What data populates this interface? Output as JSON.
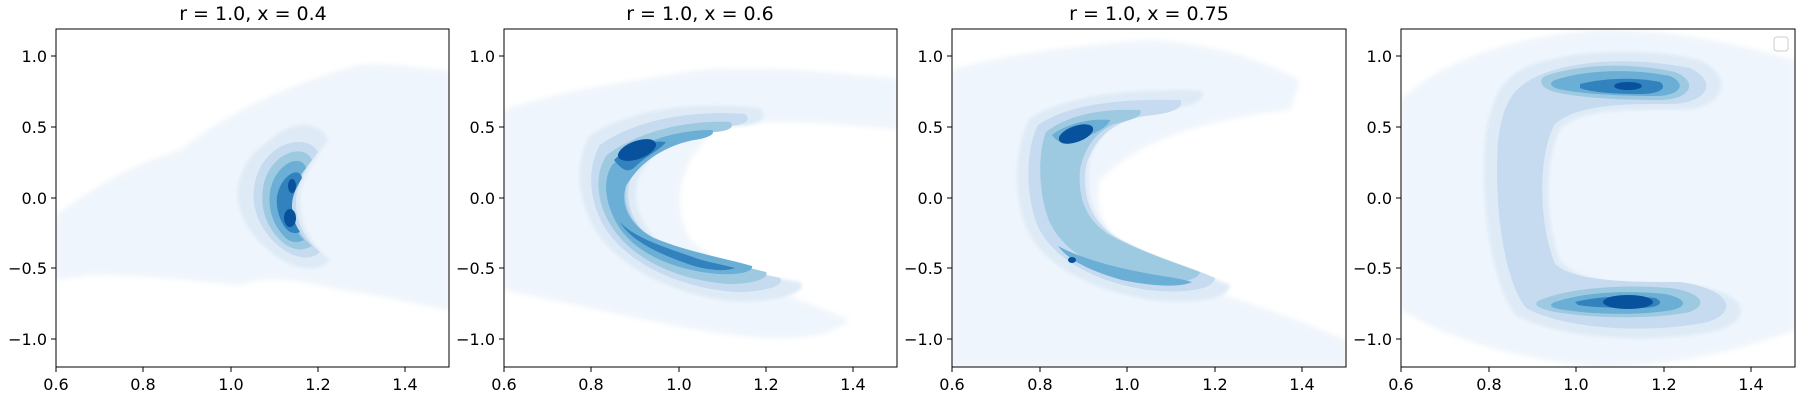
{
  "chart_data": [
    {
      "type": "heatmap",
      "title": "r = 1.0, x = 0.4",
      "xlim": [
        0.6,
        1.5
      ],
      "ylim": [
        -1.2,
        1.2
      ],
      "xticks": [
        "0.6",
        "0.8",
        "1.0",
        "1.2",
        "1.4"
      ],
      "yticks": [
        "1.0",
        "0.5",
        "0.0",
        "−0.5",
        "−1.0"
      ],
      "colormap": "Blues",
      "density_features": [
        {
          "kind": "crescent",
          "x_center": 1.1,
          "y_center": 0.0,
          "y_extent": 0.28,
          "bulge": -0.12,
          "peak": "high"
        }
      ]
    },
    {
      "type": "heatmap",
      "title": "r = 1.0, x = 0.6",
      "xlim": [
        0.6,
        1.5
      ],
      "ylim": [
        -1.2,
        1.2
      ],
      "xticks": [
        "0.6",
        "0.8",
        "1.0",
        "1.2",
        "1.4"
      ],
      "yticks": [
        "1.0",
        "0.5",
        "0.0",
        "−0.5",
        "−1.0"
      ],
      "colormap": "Blues",
      "density_features": [
        {
          "kind": "crescent",
          "x_center": 0.86,
          "y_center": 0.0,
          "y_extent": 0.6,
          "bulge": -0.1,
          "peak": "upper"
        }
      ]
    },
    {
      "type": "heatmap",
      "title": "r = 1.0, x = 0.75",
      "xlim": [
        0.6,
        1.5
      ],
      "ylim": [
        -1.2,
        1.2
      ],
      "xticks": [
        "0.6",
        "0.8",
        "1.0",
        "1.2",
        "1.4"
      ],
      "yticks": [
        "1.0",
        "0.5",
        "0.0",
        "−0.5",
        "−1.0"
      ],
      "colormap": "Blues",
      "density_features": [
        {
          "kind": "crescent",
          "x_center": 0.85,
          "y_center": 0.0,
          "y_extent": 0.6,
          "bulge": -0.1,
          "peak": "upper"
        }
      ]
    },
    {
      "type": "heatmap",
      "title": "",
      "xlim": [
        0.6,
        1.5
      ],
      "ylim": [
        -1.2,
        1.2
      ],
      "xticks": [
        "0.6",
        "0.8",
        "1.0",
        "1.2",
        "1.4"
      ],
      "yticks": [
        "1.0",
        "0.5",
        "0.0",
        "−0.5",
        "−1.0"
      ],
      "colormap": "Blues",
      "legend": "top-right",
      "density_features": [
        {
          "kind": "bracket",
          "x_center": 1.05,
          "y_top": 0.77,
          "y_bottom": -0.77,
          "peak": "both-ends"
        }
      ]
    }
  ]
}
